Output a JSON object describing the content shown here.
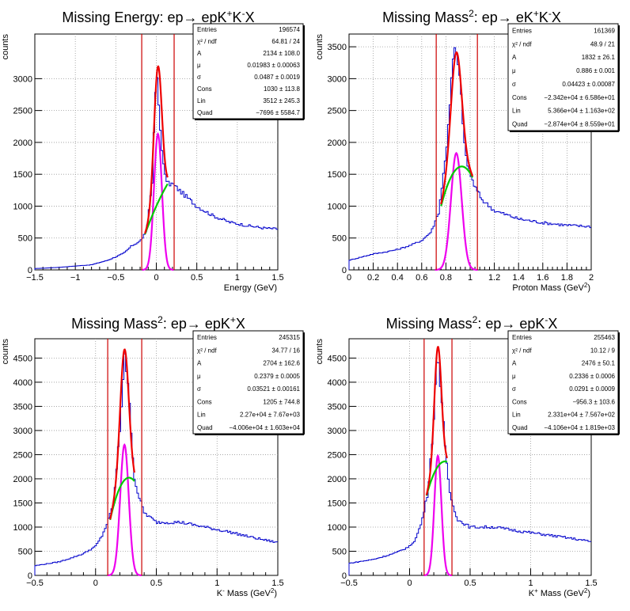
{
  "colors": {
    "histogram": "#0000cc",
    "total_fit": "#ee0000",
    "signal": "#ee00ee",
    "background": "#00cc00",
    "cut_lines": "#cc0000"
  },
  "chart_data": [
    {
      "type": "line",
      "title_main": "Missing Energy: ep",
      "title_arrow": "→",
      "title_tail": " epK",
      "title_sup1": "+",
      "title_mid": "K",
      "title_sup2": "-",
      "title_end": "X",
      "xlabel": "Energy (GeV)",
      "ylabel": "counts",
      "xlim": [
        -1.5,
        1.5
      ],
      "ylim": [
        0,
        3700
      ],
      "xticks": [
        -1.5,
        -1,
        -0.5,
        0,
        0.5,
        1,
        1.5
      ],
      "xtick_labels": [
        "−1.5",
        "−1",
        "−0.5",
        "0",
        "0.5",
        "1",
        "1.5"
      ],
      "yticks": [
        0,
        500,
        1000,
        1500,
        2000,
        2500,
        3000
      ],
      "ytick_labels": [
        "0",
        "500",
        "1000",
        "1500",
        "2000",
        "2500",
        "3000"
      ],
      "cuts": [
        -0.18,
        0.22
      ],
      "fit_range": [
        -0.14,
        0.14
      ],
      "peak": {
        "A": 2134,
        "mu": 0.0198,
        "sigma": 0.0487
      },
      "bkg_points": [
        [
          -0.14,
          560
        ],
        [
          0.0,
          1000
        ],
        [
          0.14,
          1350
        ]
      ],
      "hist": [
        [
          -1.5,
          20
        ],
        [
          -1.2,
          40
        ],
        [
          -0.8,
          80
        ],
        [
          -0.6,
          150
        ],
        [
          -0.4,
          260
        ],
        [
          -0.3,
          380
        ],
        [
          -0.2,
          450
        ],
        [
          -0.12,
          600
        ],
        [
          -0.05,
          1400
        ],
        [
          0.0,
          3150
        ],
        [
          0.05,
          2200
        ],
        [
          0.1,
          1500
        ],
        [
          0.15,
          1350
        ],
        [
          0.2,
          1350
        ],
        [
          0.3,
          1230
        ],
        [
          0.5,
          1000
        ],
        [
          0.7,
          850
        ],
        [
          0.9,
          750
        ],
        [
          1.1,
          700
        ],
        [
          1.3,
          660
        ],
        [
          1.5,
          640
        ]
      ],
      "stats": [
        {
          "label": "Entries",
          "value": "196574"
        },
        {
          "label": "χ² / ndf",
          "value": "64.81 / 24"
        },
        {
          "label": "A",
          "value": "2134 ± 108.0"
        },
        {
          "label": "μ",
          "value": "0.01983 ± 0.00063"
        },
        {
          "label": "σ",
          "value": "0.0487 ± 0.0019"
        },
        {
          "label": "Cons",
          "value": "1030 ± 113.8"
        },
        {
          "label": "Lin",
          "value": "3512 ± 245.3"
        },
        {
          "label": "Quad",
          "value": "−7696 ± 5584.7"
        }
      ]
    },
    {
      "type": "line",
      "title_main": "Missing Mass",
      "title_sup0": "2",
      "title_colon": ": ep",
      "title_arrow": "→",
      "title_tail": " eK",
      "title_sup1": "+",
      "title_mid": "K",
      "title_sup2": "-",
      "title_end": "X",
      "xlabel": "Proton Mass (GeV",
      "xlabel_sup": "2",
      "xlabel_end": ")",
      "ylabel": "counts",
      "xlim": [
        0,
        2
      ],
      "ylim": [
        0,
        3700
      ],
      "xticks": [
        0,
        0.2,
        0.4,
        0.6,
        0.8,
        1,
        1.2,
        1.4,
        1.6,
        1.8,
        2
      ],
      "xtick_labels": [
        "0",
        "0.2",
        "0.4",
        "0.6",
        "0.8",
        "1",
        "1.2",
        "1.4",
        "1.6",
        "1.8",
        "2"
      ],
      "yticks": [
        0,
        500,
        1000,
        1500,
        2000,
        2500,
        3000,
        3500
      ],
      "ytick_labels": [
        "0",
        "500",
        "1000",
        "1500",
        "2000",
        "2500",
        "3000",
        "3500"
      ],
      "cuts": [
        0.72,
        1.06
      ],
      "fit_range": [
        0.76,
        1.02
      ],
      "peak": {
        "A": 1832,
        "mu": 0.886,
        "sigma": 0.04423
      },
      "bkg_points": [
        [
          0.76,
          1000
        ],
        [
          0.92,
          1620
        ],
        [
          1.02,
          1450
        ]
      ],
      "hist": [
        [
          0,
          150
        ],
        [
          0.1,
          200
        ],
        [
          0.2,
          250
        ],
        [
          0.3,
          280
        ],
        [
          0.4,
          320
        ],
        [
          0.5,
          380
        ],
        [
          0.6,
          460
        ],
        [
          0.68,
          600
        ],
        [
          0.74,
          900
        ],
        [
          0.8,
          1800
        ],
        [
          0.86,
          3300
        ],
        [
          0.88,
          3480
        ],
        [
          0.92,
          2900
        ],
        [
          0.96,
          1800
        ],
        [
          1.0,
          1500
        ],
        [
          1.04,
          1300
        ],
        [
          1.1,
          1100
        ],
        [
          1.2,
          930
        ],
        [
          1.4,
          800
        ],
        [
          1.6,
          740
        ],
        [
          1.8,
          700
        ],
        [
          2.0,
          680
        ]
      ],
      "stats": [
        {
          "label": "Entries",
          "value": "161369"
        },
        {
          "label": "χ² / ndf",
          "value": "48.9 / 21"
        },
        {
          "label": "A",
          "value": "1832 ± 26.1"
        },
        {
          "label": "μ",
          "value": "0.886 ± 0.001"
        },
        {
          "label": "σ",
          "value": "0.04423 ± 0.00087"
        },
        {
          "label": "Cons",
          "value": "−2.342e+04 ± 6.586e+01"
        },
        {
          "label": "Lin",
          "value": "5.366e+04 ± 1.163e+02"
        },
        {
          "label": "Quad",
          "value": "−2.874e+04 ± 8.559e+01"
        }
      ]
    },
    {
      "type": "line",
      "title_main": "Missing Mass",
      "title_sup0": "2",
      "title_colon": ": ep",
      "title_arrow": "→",
      "title_tail": " epK",
      "title_sup1": "+",
      "title_mid": "",
      "title_sup2": "",
      "title_end": "X",
      "xlabel": "K",
      "xlabel_sup_k": "-",
      "xlabel_rest": " Mass (GeV",
      "xlabel_sup": "2",
      "xlabel_end": ")",
      "ylabel": "counts",
      "xlim": [
        -0.5,
        1.5
      ],
      "ylim": [
        0,
        4900
      ],
      "xticks": [
        -0.5,
        0,
        0.5,
        1,
        1.5
      ],
      "xtick_labels": [
        "−0.5",
        "0",
        "0.5",
        "1",
        "1.5"
      ],
      "yticks": [
        0,
        500,
        1000,
        1500,
        2000,
        2500,
        3000,
        3500,
        4000,
        4500
      ],
      "ytick_labels": [
        "0",
        "500",
        "1000",
        "1500",
        "2000",
        "2500",
        "3000",
        "3500",
        "4000",
        "4500"
      ],
      "cuts": [
        0.1,
        0.38
      ],
      "fit_range": [
        0.12,
        0.32
      ],
      "peak": {
        "A": 2704,
        "mu": 0.2379,
        "sigma": 0.03521
      },
      "bkg_points": [
        [
          0.12,
          1150
        ],
        [
          0.25,
          2000
        ],
        [
          0.32,
          1950
        ]
      ],
      "hist": [
        [
          -0.5,
          200
        ],
        [
          -0.3,
          280
        ],
        [
          -0.2,
          360
        ],
        [
          -0.1,
          450
        ],
        [
          0,
          600
        ],
        [
          0.05,
          800
        ],
        [
          0.1,
          1100
        ],
        [
          0.15,
          1500
        ],
        [
          0.2,
          3000
        ],
        [
          0.24,
          4650
        ],
        [
          0.28,
          3500
        ],
        [
          0.32,
          2000
        ],
        [
          0.36,
          1600
        ],
        [
          0.4,
          1300
        ],
        [
          0.5,
          1100
        ],
        [
          0.7,
          1100
        ],
        [
          0.9,
          1000
        ],
        [
          1.1,
          900
        ],
        [
          1.3,
          780
        ],
        [
          1.5,
          680
        ]
      ],
      "stats": [
        {
          "label": "Entries",
          "value": "245315"
        },
        {
          "label": "χ² / ndf",
          "value": "34.77 / 16"
        },
        {
          "label": "A",
          "value": "2704 ± 162.6"
        },
        {
          "label": "μ",
          "value": "0.2379 ± 0.0005"
        },
        {
          "label": "σ",
          "value": "0.03521 ± 0.00161"
        },
        {
          "label": "Cons",
          "value": "1205 ± 744.8"
        },
        {
          "label": "Lin",
          "value": "2.27e+04 ± 7.67e+03"
        },
        {
          "label": "Quad",
          "value": "−4.006e+04 ± 1.603e+04"
        }
      ]
    },
    {
      "type": "line",
      "title_main": "Missing Mass",
      "title_sup0": "2",
      "title_colon": ": ep",
      "title_arrow": "→",
      "title_tail": " epK",
      "title_sup1": "",
      "title_mid": "",
      "title_sup2": "-",
      "title_end": "X",
      "xlabel": "K",
      "xlabel_sup_k": "+",
      "xlabel_rest": " Mass (GeV",
      "xlabel_sup": "2",
      "xlabel_end": ")",
      "ylabel": "counts",
      "xlim": [
        -0.5,
        1.5
      ],
      "ylim": [
        0,
        4900
      ],
      "xticks": [
        -0.5,
        0,
        0.5,
        1,
        1.5
      ],
      "xtick_labels": [
        "−0.5",
        "0",
        "0.5",
        "1",
        "1.5"
      ],
      "yticks": [
        0,
        500,
        1000,
        1500,
        2000,
        2500,
        3000,
        3500,
        4000,
        4500
      ],
      "ytick_labels": [
        "0",
        "500",
        "1000",
        "1500",
        "2000",
        "2500",
        "3000",
        "3500",
        "4000",
        "4500"
      ],
      "cuts": [
        0.12,
        0.35
      ],
      "fit_range": [
        0.14,
        0.31
      ],
      "peak": {
        "A": 2476,
        "mu": 0.2336,
        "sigma": 0.0291
      },
      "bkg_points": [
        [
          0.14,
          1650
        ],
        [
          0.22,
          2200
        ],
        [
          0.31,
          2350
        ]
      ],
      "hist": [
        [
          -0.5,
          250
        ],
        [
          -0.3,
          330
        ],
        [
          -0.2,
          400
        ],
        [
          -0.1,
          480
        ],
        [
          0,
          600
        ],
        [
          0.05,
          750
        ],
        [
          0.1,
          1100
        ],
        [
          0.15,
          1700
        ],
        [
          0.2,
          3200
        ],
        [
          0.23,
          4700
        ],
        [
          0.26,
          3800
        ],
        [
          0.3,
          2400
        ],
        [
          0.34,
          1600
        ],
        [
          0.4,
          1150
        ],
        [
          0.5,
          1000
        ],
        [
          0.7,
          1000
        ],
        [
          0.9,
          920
        ],
        [
          1.1,
          850
        ],
        [
          1.3,
          780
        ],
        [
          1.5,
          700
        ]
      ],
      "stats": [
        {
          "label": "Entries",
          "value": "255463"
        },
        {
          "label": "χ² / ndf",
          "value": "10.12 / 9"
        },
        {
          "label": "A",
          "value": "2476 ± 50.1"
        },
        {
          "label": "μ",
          "value": "0.2336 ± 0.0006"
        },
        {
          "label": "σ",
          "value": "0.0291 ± 0.0009"
        },
        {
          "label": "Cons",
          "value": "−956.3 ± 103.6"
        },
        {
          "label": "Lin",
          "value": "2.331e+04 ± 7.567e+02"
        },
        {
          "label": "Quad",
          "value": "−4.106e+04 ± 1.819e+03"
        }
      ]
    }
  ]
}
